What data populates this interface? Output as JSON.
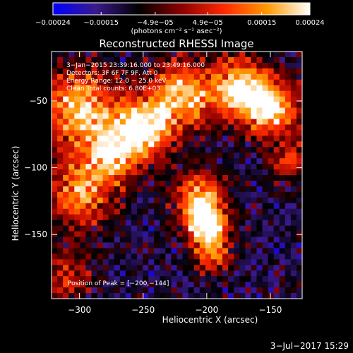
{
  "chart_data": {
    "type": "heatmap",
    "title": "Reconstructed RHESSI Image",
    "xlabel": "Heliocentric X (arcsec)",
    "ylabel": "Heliocentric Y (arcsec)",
    "xlim": [
      -322,
      -125
    ],
    "ylim": [
      -198,
      -13
    ],
    "x_ticks": [
      -300,
      -250,
      -200,
      -150
    ],
    "x_tick_labels": [
      "−300",
      "−250",
      "−200",
      "−150"
    ],
    "y_ticks": [
      -150,
      -100,
      -50
    ],
    "y_tick_labels": [
      "−150",
      "−100",
      "−50"
    ],
    "colorbar": {
      "range": [
        -0.00024,
        0.00024
      ],
      "tick_values": [
        -0.00024,
        -0.00015,
        -4.9e-05,
        4.9e-05,
        0.00015,
        0.00024
      ],
      "tick_labels": [
        "−0.00024",
        "−0.00015",
        "−4.9e−05",
        "4.9e−05",
        "0.00015",
        "0.00024"
      ],
      "units": "(photons cm⁻² s⁻¹ asec⁻²)",
      "colors": [
        "#0000ff",
        "#3a1a8c",
        "#000000",
        "#8b0000",
        "#ff2a00",
        "#ff9a00",
        "#ffffff"
      ]
    },
    "annotations": [
      "3−Jan−2015 23:39:16.000 to 23:49:16.000",
      "Detectors: 3F 6F 7F 9F, Att 0",
      "Energy Range: 12.0 − 25.0 keV",
      "Clean    Total counts: 6.80E+03"
    ],
    "peak_label": "Position of Peak = [−200,−144]",
    "peak_position": [
      -200,
      -144
    ],
    "hot_regions": [
      {
        "x": -300,
        "y": -55,
        "r": 28,
        "v": 0.9
      },
      {
        "x": -250,
        "y": -70,
        "r": 22,
        "v": 1.0
      },
      {
        "x": -275,
        "y": -90,
        "r": 22,
        "v": 0.8
      },
      {
        "x": -300,
        "y": -120,
        "r": 24,
        "v": 0.75
      },
      {
        "x": -220,
        "y": -45,
        "r": 25,
        "v": 0.85
      },
      {
        "x": -175,
        "y": -40,
        "r": 22,
        "v": 0.85
      },
      {
        "x": -150,
        "y": -55,
        "r": 22,
        "v": 0.9
      },
      {
        "x": -135,
        "y": -95,
        "r": 14,
        "v": 0.5
      },
      {
        "x": -205,
        "y": -125,
        "r": 20,
        "v": 0.85
      },
      {
        "x": -200,
        "y": -144,
        "r": 14,
        "v": 1.0
      },
      {
        "x": -195,
        "y": -165,
        "r": 14,
        "v": 0.55
      },
      {
        "x": -310,
        "y": -180,
        "r": 20,
        "v": 0.45
      }
    ]
  },
  "footer": {
    "date": "3−Jul−2017 15:29"
  }
}
